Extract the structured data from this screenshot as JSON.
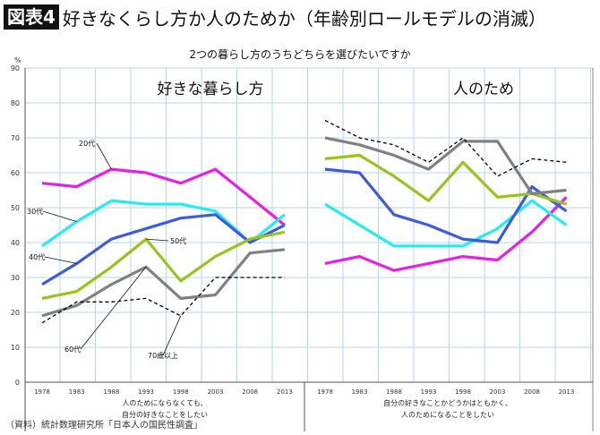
{
  "header": {
    "badge": "図表4",
    "title": "好きなくらし方か人のためか（年齢別ロールモデルの消滅）"
  },
  "source": "（資料）統計数理研究所「日本人の国民性調査」",
  "chart_data": {
    "type": "line",
    "title": "2つの暮らし方のうちどちらを選びたいですか",
    "ylabel": "%",
    "ylim": [
      0,
      90
    ],
    "yticks": [
      "0",
      "10",
      "20",
      "30",
      "40",
      "50",
      "60",
      "70",
      "80",
      "90"
    ],
    "grid": true,
    "x": [
      "1978",
      "1983",
      "1988",
      "1993",
      "1998",
      "2003",
      "2008",
      "2013"
    ],
    "panels": [
      {
        "title": "好きな暮らし方",
        "category": [
          "人のためにならなくても、",
          "自分の好きなことをしたい"
        ],
        "series": [
          {
            "name": "20代",
            "color": "#e61ee6",
            "values": [
              57,
              56,
              61,
              60,
              57,
              61,
              53,
              45
            ]
          },
          {
            "name": "30代",
            "color": "#22eeee",
            "values": [
              39,
              46,
              52,
              51,
              51,
              49,
              40,
              48
            ]
          },
          {
            "name": "40代",
            "color": "#3b5ce0",
            "values": [
              28,
              34,
              41,
              44,
              47,
              48,
              40,
              45
            ]
          },
          {
            "name": "50代",
            "color": "#9ac31c",
            "values": [
              24,
              26,
              33,
              41,
              29,
              36,
              41,
              43
            ]
          },
          {
            "name": "60代",
            "color": "#808080",
            "values": [
              19,
              22,
              28,
              33,
              24,
              25,
              37,
              38
            ]
          },
          {
            "name": "70歳以上",
            "color": "#000000",
            "dashed": true,
            "values": [
              17,
              23,
              23,
              24,
              19,
              30,
              30,
              30
            ]
          }
        ]
      },
      {
        "title": "人のため",
        "category": [
          "自分の好きなことかどうかはともかく、",
          "人のためになることをしたい"
        ],
        "series": [
          {
            "name": "20代",
            "color": "#e61ee6",
            "values": [
              34,
              36,
              32,
              34,
              36,
              35,
              43,
              53
            ]
          },
          {
            "name": "30代",
            "color": "#22eeee",
            "values": [
              51,
              45,
              39,
              39,
              39,
              44,
              52,
              45
            ]
          },
          {
            "name": "40代",
            "color": "#3b5ce0",
            "values": [
              61,
              60,
              48,
              45,
              41,
              40,
              56,
              49
            ]
          },
          {
            "name": "50代",
            "color": "#9ac31c",
            "values": [
              64,
              65,
              59,
              52,
              63,
              53,
              54,
              51
            ]
          },
          {
            "name": "60代",
            "color": "#808080",
            "values": [
              70,
              68,
              65,
              61,
              69,
              69,
              54,
              55
            ]
          },
          {
            "name": "70歳以上",
            "color": "#000000",
            "dashed": true,
            "values": [
              75,
              70,
              68,
              63,
              70,
              59,
              64,
              63
            ]
          }
        ]
      }
    ]
  }
}
